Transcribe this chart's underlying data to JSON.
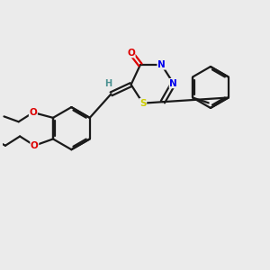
{
  "background_color": "#ebebeb",
  "bond_color": "#1a1a1a",
  "atom_colors": {
    "O": "#dd0000",
    "N": "#0000ee",
    "S": "#cccc00",
    "C": "#1a1a1a",
    "H": "#4a9090"
  },
  "figsize": [
    3.0,
    3.0
  ],
  "dpi": 100
}
